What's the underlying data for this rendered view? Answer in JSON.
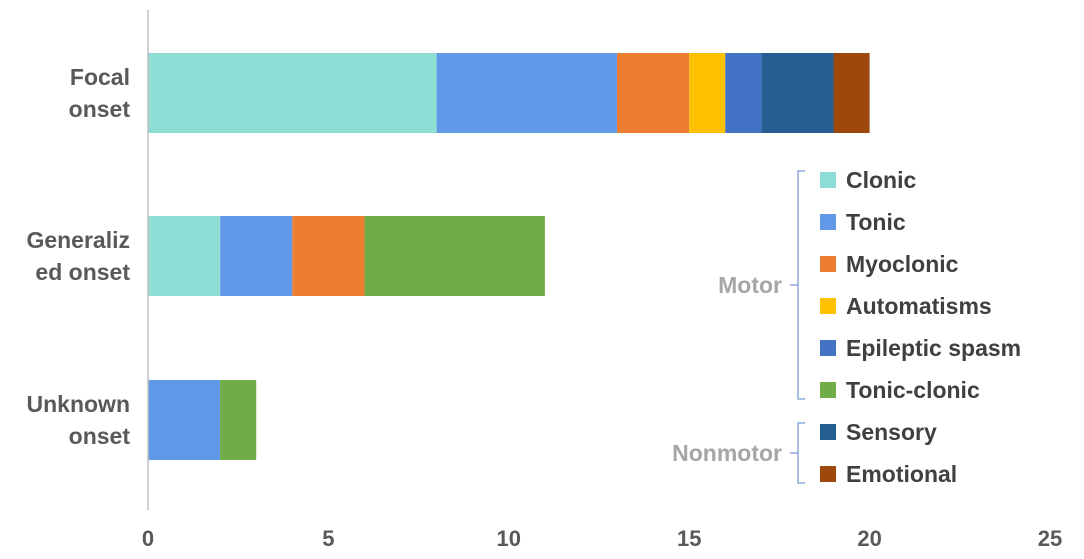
{
  "chart_data": {
    "type": "bar",
    "orientation": "horizontal",
    "stacked": true,
    "title": "",
    "xlabel": "",
    "ylabel": "",
    "xlim": [
      0,
      25
    ],
    "x_ticks": [
      0,
      5,
      10,
      15,
      20,
      25
    ],
    "grid": false,
    "legend_position": "right",
    "categories": [
      {
        "lines": [
          "Focal",
          "onset"
        ]
      },
      {
        "lines": [
          "Generaliz",
          "ed onset"
        ]
      },
      {
        "lines": [
          "Unknown",
          "onset"
        ]
      }
    ],
    "series": [
      {
        "name": "Clonic",
        "color": "#8fded6",
        "group": "Motor",
        "values": [
          8,
          2,
          0
        ]
      },
      {
        "name": "Tonic",
        "color": "#6199e8",
        "group": "Motor",
        "values": [
          5,
          2,
          2
        ]
      },
      {
        "name": "Myoclonic",
        "color": "#ed7d31",
        "group": "Motor",
        "values": [
          2,
          2,
          0
        ]
      },
      {
        "name": "Automatisms",
        "color": "#ffc000",
        "group": "Motor",
        "values": [
          1,
          0,
          0
        ]
      },
      {
        "name": "Epileptic spasm",
        "color": "#4472c4",
        "group": "Motor",
        "values": [
          1,
          0,
          0
        ]
      },
      {
        "name": "Tonic-clonic",
        "color": "#70ad47",
        "group": "Motor",
        "values": [
          0,
          5,
          1
        ]
      },
      {
        "name": "Sensory",
        "color": "#255e91",
        "group": "Nonmotor",
        "values": [
          2,
          0,
          0
        ]
      },
      {
        "name": "Emotional",
        "color": "#9e480e",
        "group": "Nonmotor",
        "values": [
          1,
          0,
          0
        ]
      }
    ],
    "legend_groups": [
      {
        "label": "Motor",
        "members": [
          "Clonic",
          "Tonic",
          "Myoclonic",
          "Automatisms",
          "Epileptic spasm",
          "Tonic-clonic"
        ]
      },
      {
        "label": "Nonmotor",
        "members": [
          "Sensory",
          "Emotional"
        ]
      }
    ],
    "bracket_color": "#8eaadb",
    "axis_color": "#bfbfbf"
  }
}
